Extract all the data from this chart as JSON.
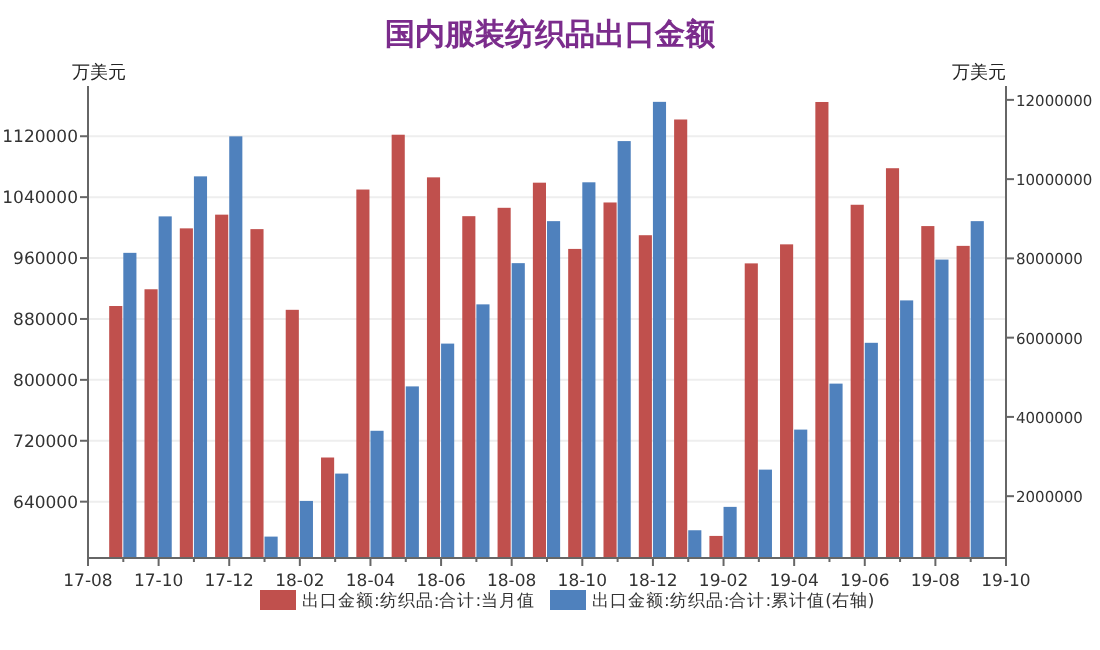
{
  "chart_data": {
    "type": "bar",
    "title": "国内服装纺织品出口金额",
    "ylabel": "万美元",
    "y2label": "万美元",
    "categories": [
      "17-08",
      null,
      "17-10",
      null,
      "17-12",
      null,
      "18-02",
      null,
      "18-04",
      null,
      "18-06",
      null,
      "18-08",
      null,
      "18-10",
      null,
      "18-12",
      null,
      "19-02",
      null,
      "19-04",
      null,
      "19-06",
      null,
      "19-08",
      null,
      "19-10"
    ],
    "series": [
      {
        "name": "出口金额:纺织品:合计:当月值",
        "color": "#c0504d",
        "values": [
          null,
          897000,
          919000,
          999000,
          1017000,
          998000,
          892000,
          698000,
          1050000,
          1122000,
          1066000,
          1015000,
          1026000,
          1059000,
          972000,
          1033000,
          990000,
          1142000,
          595000,
          953000,
          978000,
          1165000,
          1030000,
          1078000,
          1002000,
          976000,
          null
        ]
      },
      {
        "name": "出口金额:纺织品:合计:累计值(右轴)",
        "color": "#4f81bd",
        "axis": "y2",
        "values": [
          null,
          8140000,
          9060000,
          10070000,
          11080000,
          980000,
          1880000,
          2570000,
          3650000,
          4770000,
          5850000,
          6840000,
          7880000,
          8940000,
          9920000,
          10960000,
          11950000,
          1140000,
          1730000,
          2670000,
          3680000,
          4840000,
          5870000,
          6940000,
          7970000,
          8940000,
          null
        ]
      }
    ],
    "ylim": [
      566000,
      1186000
    ],
    "yticks": [
      640000,
      720000,
      800000,
      880000,
      960000,
      1040000,
      1120000
    ],
    "y2lim": [
      440000,
      12350000
    ],
    "y2ticks": [
      2000000,
      4000000,
      6000000,
      8000000,
      10000000,
      12000000
    ],
    "grid": "y",
    "legend": "bottom"
  }
}
